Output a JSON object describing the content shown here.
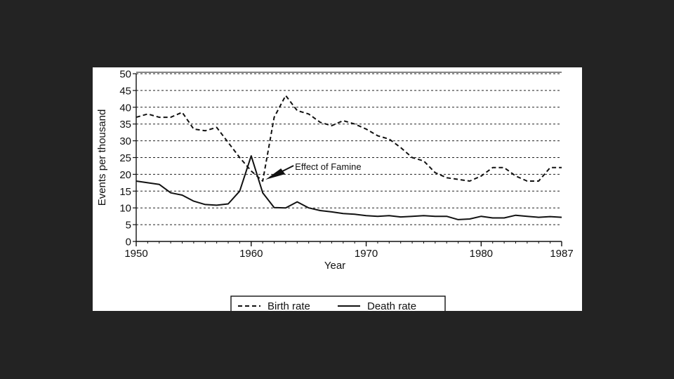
{
  "chart_data": {
    "type": "line",
    "xlabel": "Year",
    "ylabel": "Events per thousand",
    "xlim": [
      1950,
      1987
    ],
    "ylim": [
      0,
      50
    ],
    "x_ticks": [
      1950,
      1960,
      1970,
      1980,
      1987
    ],
    "y_ticks": [
      0,
      5,
      10,
      15,
      20,
      25,
      30,
      35,
      40,
      45,
      50
    ],
    "grid": "horizontal dashed",
    "legend_position": "bottom",
    "series": [
      {
        "name": "Birth rate",
        "style": "dashed",
        "color": "#111111",
        "x": [
          1950,
          1951,
          1952,
          1953,
          1954,
          1955,
          1956,
          1957,
          1958,
          1959,
          1960,
          1961,
          1962,
          1963,
          1964,
          1965,
          1966,
          1967,
          1968,
          1969,
          1970,
          1971,
          1972,
          1973,
          1974,
          1975,
          1976,
          1977,
          1978,
          1979,
          1980,
          1981,
          1982,
          1983,
          1984,
          1985,
          1986,
          1987
        ],
        "values": [
          37,
          38,
          37,
          37,
          38.5,
          33.5,
          33,
          34,
          29.5,
          25,
          21,
          18,
          37,
          43.5,
          39,
          38,
          35.5,
          34.5,
          36,
          35,
          33.5,
          31.5,
          30.5,
          28,
          25,
          24,
          20.5,
          19,
          18.5,
          18,
          19.5,
          22,
          22,
          19.5,
          18,
          18,
          22,
          22
        ]
      },
      {
        "name": "Death rate",
        "style": "solid",
        "color": "#111111",
        "x": [
          1950,
          1951,
          1952,
          1953,
          1954,
          1955,
          1956,
          1957,
          1958,
          1959,
          1960,
          1961,
          1962,
          1963,
          1964,
          1965,
          1966,
          1967,
          1968,
          1969,
          1970,
          1971,
          1972,
          1973,
          1974,
          1975,
          1976,
          1977,
          1978,
          1979,
          1980,
          1981,
          1982,
          1983,
          1984,
          1985,
          1986,
          1987
        ],
        "values": [
          18,
          17.5,
          17,
          14.5,
          13.8,
          12,
          11,
          10.8,
          11.2,
          15,
          25.5,
          14.5,
          10.1,
          10,
          11.8,
          10,
          9.2,
          8.8,
          8.3,
          8.1,
          7.7,
          7.5,
          7.7,
          7.3,
          7.5,
          7.7,
          7.5,
          7.5,
          6.5,
          6.7,
          7.5,
          7,
          7,
          7.8,
          7.5,
          7.2,
          7.4,
          7.2
        ]
      }
    ],
    "annotation": {
      "text": "Effect of Famine",
      "x": 1961,
      "y": 18
    }
  }
}
